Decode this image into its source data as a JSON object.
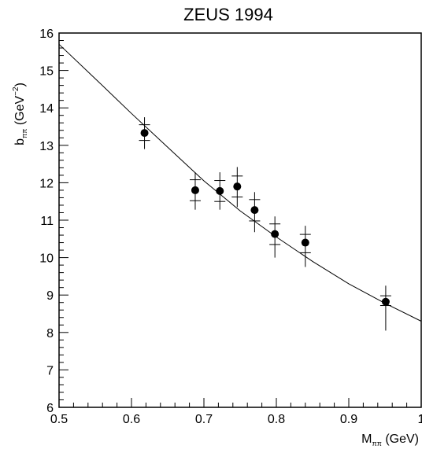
{
  "chart_data": {
    "type": "scatter",
    "title": "ZEUS 1994",
    "xlabel": {
      "main": "M",
      "sub": "ππ",
      "unit": " (GeV)"
    },
    "ylabel": {
      "main": "b",
      "sub": "ππ",
      "unit": " (GeV",
      "sup": "−2",
      "close": ")"
    },
    "xlim": [
      0.5,
      1.0
    ],
    "ylim": [
      6,
      16
    ],
    "x_ticks": [
      "0.5",
      "0.6",
      "0.7",
      "0.8",
      "0.9",
      "1"
    ],
    "x_tick_values": [
      0.5,
      0.6,
      0.7,
      0.8,
      0.9,
      1.0
    ],
    "y_ticks": [
      "6",
      "7",
      "8",
      "9",
      "10",
      "11",
      "12",
      "13",
      "14",
      "15",
      "16"
    ],
    "y_tick_values": [
      6,
      7,
      8,
      9,
      10,
      11,
      12,
      13,
      14,
      15,
      16
    ],
    "grid": false,
    "series": [
      {
        "type": "scatter",
        "points": [
          {
            "x": 0.618,
            "y": 13.33,
            "stat_lo": 13.13,
            "stat_hi": 13.55,
            "tot_lo": 12.9,
            "tot_hi": 13.75
          },
          {
            "x": 0.688,
            "y": 11.8,
            "stat_lo": 11.52,
            "stat_hi": 12.08,
            "tot_lo": 11.28,
            "tot_hi": 12.28
          },
          {
            "x": 0.722,
            "y": 11.78,
            "stat_lo": 11.5,
            "stat_hi": 12.06,
            "tot_lo": 11.28,
            "tot_hi": 12.28
          },
          {
            "x": 0.746,
            "y": 11.9,
            "stat_lo": 11.62,
            "stat_hi": 12.18,
            "tot_lo": 11.35,
            "tot_hi": 12.42
          },
          {
            "x": 0.77,
            "y": 11.27,
            "stat_lo": 10.98,
            "stat_hi": 11.55,
            "tot_lo": 10.68,
            "tot_hi": 11.75
          },
          {
            "x": 0.798,
            "y": 10.63,
            "stat_lo": 10.35,
            "stat_hi": 10.9,
            "tot_lo": 10.0,
            "tot_hi": 11.1
          },
          {
            "x": 0.84,
            "y": 10.4,
            "stat_lo": 10.13,
            "stat_hi": 10.62,
            "tot_lo": 9.75,
            "tot_hi": 10.85
          },
          {
            "x": 0.951,
            "y": 8.82,
            "stat_lo": 8.72,
            "stat_hi": 8.98,
            "tot_lo": 8.05,
            "tot_hi": 9.25
          }
        ]
      },
      {
        "type": "line",
        "x": [
          0.5,
          0.55,
          0.6,
          0.65,
          0.7,
          0.75,
          0.8,
          0.85,
          0.9,
          0.95,
          1.0
        ],
        "y": [
          15.7,
          14.78,
          13.85,
          12.95,
          12.05,
          11.25,
          10.55,
          9.9,
          9.3,
          8.78,
          8.3
        ]
      }
    ]
  }
}
